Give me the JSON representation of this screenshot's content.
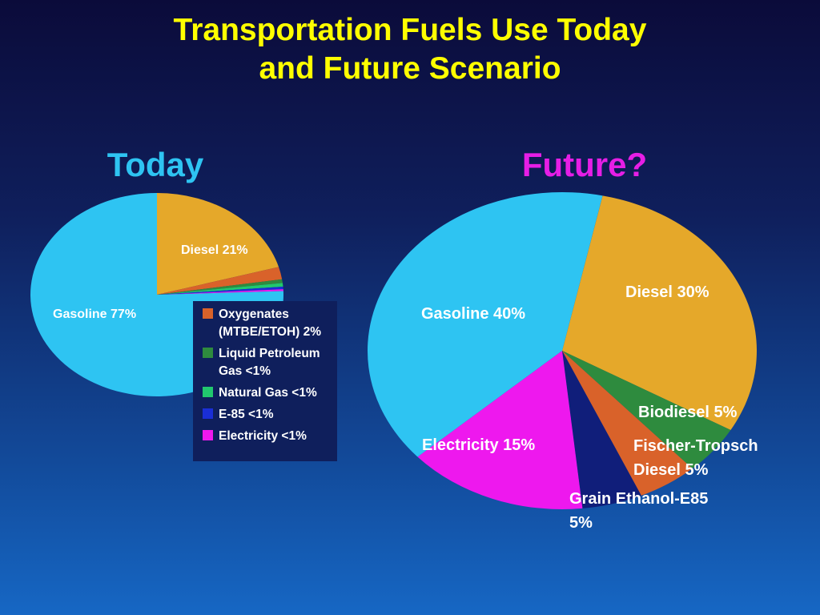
{
  "title": {
    "line1": "Transportation Fuels Use Today",
    "line2": "and Future Scenario"
  },
  "colors": {
    "gasoline": "#2ec4f2",
    "diesel": "#e5a82a",
    "oxygenates": "#d9622a",
    "lpg": "#2e8b3e",
    "natural_gas": "#21c86e",
    "e85": "#1a2ed6",
    "electricity": "#ee18ee",
    "biodiesel": "#2e8b3e",
    "fischer_tropsch": "#d9622a",
    "grain_ethanol": "#101e7a"
  },
  "chart_data": [
    {
      "type": "pie",
      "title": "Today",
      "title_color": "#2ec4f2",
      "slices": [
        {
          "label": "Diesel 21%",
          "value": 21,
          "color": "#e5a82a"
        },
        {
          "label": "Oxygenates (MTBE/ETOH) 2%",
          "value": 2,
          "color": "#d9622a"
        },
        {
          "label": "Liquid Petroleum Gas <1%",
          "value": 0.6,
          "color": "#2e8b3e"
        },
        {
          "label": "Natural Gas <1%",
          "value": 0.6,
          "color": "#21c86e"
        },
        {
          "label": "E-85 <1%",
          "value": 0.4,
          "color": "#1a2ed6"
        },
        {
          "label": "Electricity <1%",
          "value": 0.3,
          "color": "#ee18ee"
        },
        {
          "label": "Gasoline 77%",
          "value": 77,
          "color": "#2ec4f2"
        }
      ],
      "labels_on_chart": {
        "diesel": "Diesel 21%",
        "gasoline": "Gasoline 77%"
      },
      "legend": [
        {
          "line1": "Oxygenates",
          "line2": "(MTBE/ETOH) 2%",
          "color": "#d9622a"
        },
        {
          "line1": "Liquid Petroleum",
          "line2": "Gas <1%",
          "color": "#2e8b3e"
        },
        {
          "line1": "Natural Gas <1%",
          "line2": "",
          "color": "#21c86e"
        },
        {
          "line1": "E-85 <1%",
          "line2": "",
          "color": "#1a2ed6"
        },
        {
          "line1": "Electricity <1%",
          "line2": "",
          "color": "#ee18ee"
        }
      ],
      "legend_placement": "bottom-right"
    },
    {
      "type": "pie",
      "title": "Future?",
      "title_color": "#e61ee6",
      "slices": [
        {
          "label": "Diesel 30%",
          "value": 30,
          "color": "#e5a82a"
        },
        {
          "label": "Biodiesel 5%",
          "value": 5,
          "color": "#2e8b3e"
        },
        {
          "label": "Fischer-Tropsch Diesel 5%",
          "value": 5,
          "color": "#d9622a"
        },
        {
          "label": "Grain Ethanol-E85 5%",
          "value": 5,
          "color": "#101e7a"
        },
        {
          "label": "Electricity 15%",
          "value": 15,
          "color": "#ee18ee"
        },
        {
          "label": "Gasoline 40%",
          "value": 40,
          "color": "#2ec4f2"
        }
      ],
      "labels_on_chart": {
        "diesel": "Diesel 30%",
        "gasoline": "Gasoline 40%",
        "biodiesel": "Biodiesel 5%",
        "fischer_line1": "Fischer-Tropsch",
        "fischer_line2": "Diesel 5%",
        "electricity": "Electricity 15%",
        "grain_line1": "Grain Ethanol-E85",
        "grain_line2": "5%"
      }
    }
  ]
}
